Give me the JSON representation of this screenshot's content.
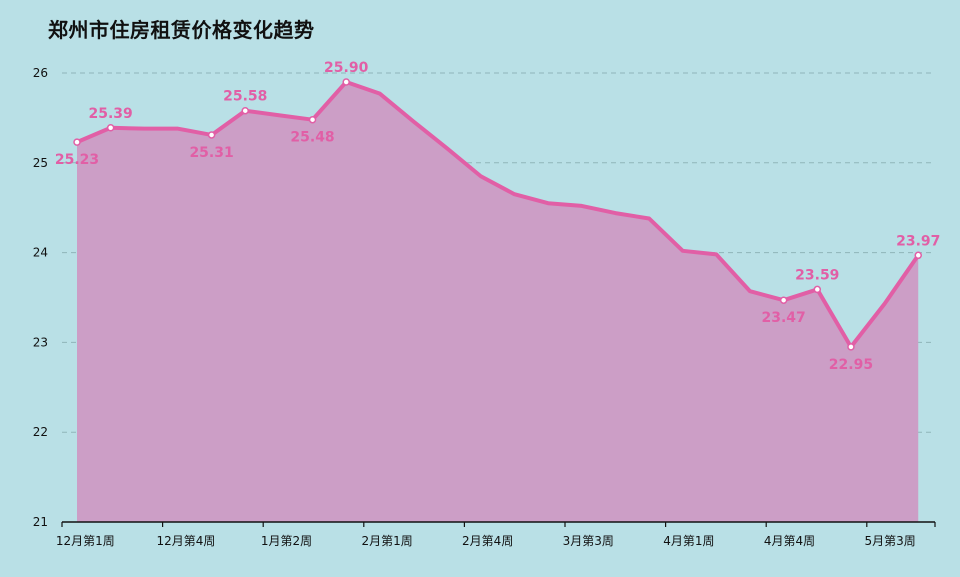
{
  "title": "郑州市住房租赁价格变化趋势",
  "chart_data": {
    "type": "area",
    "title": "郑州市住房租赁价格变化趋势",
    "xlabel": "",
    "ylabel": "",
    "ylim": [
      21,
      26
    ],
    "yticks": [
      21,
      22,
      23,
      24,
      25,
      26
    ],
    "grid": "horizontal dashed",
    "xticks": [
      "12月第1周",
      "12月第4周",
      "1月第2周",
      "2月第1周",
      "2月第4周",
      "3月第3周",
      "4月第1周",
      "4月第4周",
      "5月第3周"
    ],
    "series": [
      {
        "values": [
          25.23,
          25.39,
          25.38,
          25.38,
          25.31,
          25.58,
          25.53,
          25.48,
          25.9,
          25.77,
          25.46,
          25.16,
          24.85,
          24.65,
          24.55,
          24.52,
          24.44,
          24.38,
          24.02,
          23.98,
          23.57,
          23.47,
          23.59,
          22.95,
          23.43,
          23.97
        ],
        "labels": {
          "0": "25.23",
          "1": "25.39",
          "4": "25.31",
          "5": "25.58",
          "7": "25.48",
          "8": "25.90",
          "21": "23.47",
          "22": "23.59",
          "23": "22.95",
          "25": "23.97"
        },
        "label_pos": {
          "0": "below",
          "1": "above",
          "4": "below",
          "5": "above",
          "7": "below",
          "8": "above",
          "21": "below",
          "22": "above",
          "23": "below",
          "25": "above"
        }
      }
    ],
    "colors": {
      "line": "#e15fa6",
      "fill": "#cc9ec6",
      "grid": "#8fb5b9",
      "axis": "#111111"
    }
  }
}
